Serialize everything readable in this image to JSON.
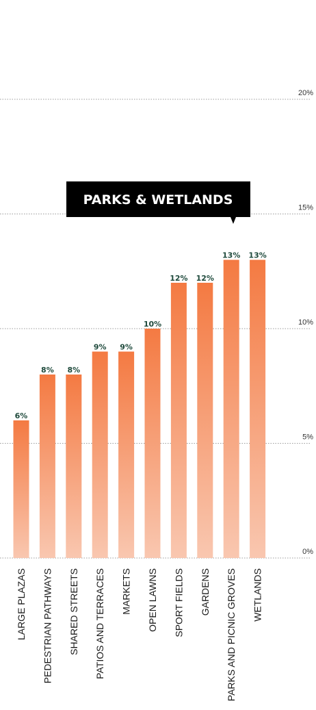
{
  "chart_data": {
    "type": "bar",
    "categories": [
      "LARGE PLAZAS",
      "PEDESTRIAN  PATHWAYS",
      "SHARED STREETS",
      "PATIOS AND TERRACES",
      "MARKETS",
      "OPEN LAWNS",
      "SPORT FIELDS",
      "GARDENS",
      "PARKS AND PICNIC GROVES",
      "WETLANDS"
    ],
    "values": [
      6,
      8,
      8,
      9,
      9,
      10,
      12,
      12,
      13,
      13
    ],
    "value_labels": [
      "6%",
      "8%",
      "8%",
      "9%",
      "9%",
      "10%",
      "12%",
      "12%",
      "13%",
      "13%"
    ],
    "ylim": [
      0,
      20
    ],
    "yticks": [
      0,
      5,
      10,
      15,
      20
    ],
    "ytick_labels": [
      "0%",
      "5%",
      "10%",
      "15%",
      "20%"
    ],
    "grid": true,
    "title": "",
    "xlabel": "",
    "ylabel": "",
    "bar_color_top": "#f47a42",
    "bar_color_bottom": "#f9c7b0",
    "bar_label_color": "#1f4a3c"
  },
  "tooltip": {
    "text": "PARKS & WETLANDS",
    "background": "#000000",
    "text_color": "#ffffff"
  }
}
